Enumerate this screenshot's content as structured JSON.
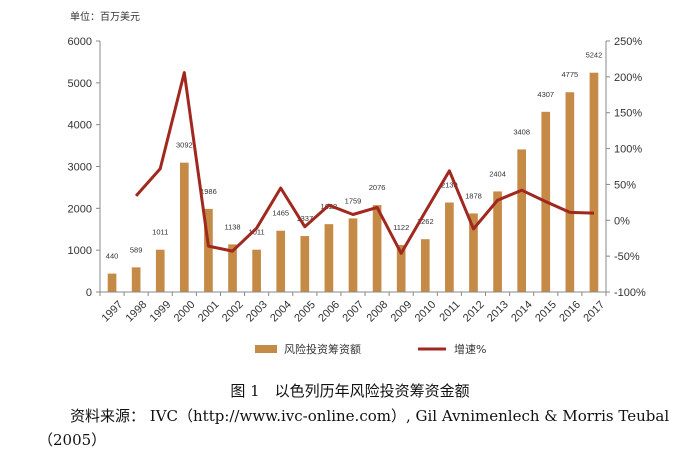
{
  "chart_data": {
    "type": "bar+line",
    "unit_label": "单位：百万美元",
    "categories": [
      "1997",
      "1998",
      "1999",
      "2000",
      "2001",
      "2002",
      "2003",
      "2004",
      "2005",
      "2006",
      "2007",
      "2008",
      "2009",
      "2010",
      "2011",
      "2012",
      "2013",
      "2014",
      "2015",
      "2016",
      "2017"
    ],
    "series": [
      {
        "name": "风险投资筹资额",
        "type": "bar",
        "axis": "left",
        "color": "#C48A46",
        "values": [
          440,
          589,
          1011,
          3092,
          1986,
          1138,
          1011,
          1465,
          1337,
          1622,
          1759,
          2076,
          1122,
          1262,
          2139,
          1878,
          2404,
          3408,
          4307,
          4775,
          5242
        ]
      },
      {
        "name": "增速%",
        "type": "line",
        "axis": "right",
        "color": "#A0281E",
        "values": [
          null,
          34,
          72,
          206,
          -36,
          -43,
          -11,
          45,
          -9,
          21,
          8,
          18,
          -46,
          12,
          69,
          -12,
          28,
          42,
          26,
          11,
          10
        ]
      }
    ],
    "left_axis": {
      "ylim": [
        0,
        6000
      ],
      "ticks": [
        "0",
        "1000",
        "2000",
        "3000",
        "4000",
        "5000",
        "6000"
      ]
    },
    "right_axis": {
      "ylim": [
        -100,
        250
      ],
      "ticks": [
        "-100%",
        "-50%",
        "0%",
        "50%",
        "100%",
        "150%",
        "200%",
        "250%"
      ]
    },
    "legend_position": "bottom",
    "grid": false
  },
  "caption": "图 1　以色列历年风险投资筹资金额",
  "source": "资料来源： IVC（http://www.ivc-online.com）, Gil Avnimenlech & Morris Teubal（2005）"
}
